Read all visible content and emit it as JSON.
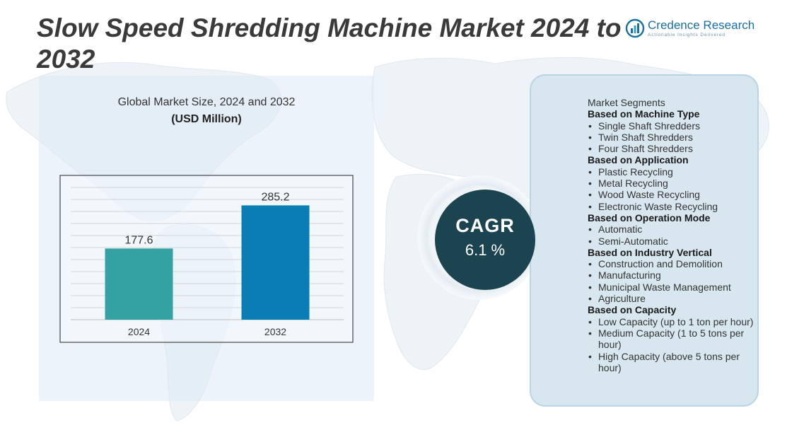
{
  "title": "Slow Speed Shredding Machine Market 2024 to 2032",
  "brand": {
    "name": "Credence Research",
    "tagline": "Actionable Insights Delivered"
  },
  "chart_data": {
    "type": "bar",
    "title": "Global Market Size, 2024 and 2032",
    "ylabel": "(USD Million)",
    "categories": [
      "2024",
      "2032"
    ],
    "values": [
      177.6,
      285.2
    ],
    "data_labels": [
      "177.6",
      "285.2"
    ],
    "bar_colors": [
      "#34a1a3",
      "#0a7db5"
    ],
    "ylim": [
      0,
      360
    ],
    "grid": true
  },
  "cagr": {
    "label": "CAGR",
    "value": "6.1 %"
  },
  "segments": {
    "heading": "Market Segments",
    "groups": [
      {
        "title": "Based on Machine Type",
        "items": [
          "Single Shaft Shredders",
          "Twin Shaft Shredders",
          "Four Shaft Shredders"
        ]
      },
      {
        "title": "Based on Application",
        "items": [
          "Plastic Recycling",
          "Metal Recycling",
          "Wood Waste Recycling",
          "Electronic Waste Recycling"
        ]
      },
      {
        "title": "Based on Operation Mode",
        "items": [
          "Automatic",
          "Semi-Automatic"
        ]
      },
      {
        "title": "Based on Industry Vertical",
        "items": [
          "Construction and Demolition",
          "Manufacturing",
          "Municipal Waste Management",
          "Agriculture"
        ]
      },
      {
        "title": "Based on Capacity",
        "items": [
          "Low Capacity (up to 1 ton per hour)",
          "Medium Capacity (1 to 5 tons per hour)",
          "High Capacity (above 5 tons per hour)"
        ]
      }
    ]
  },
  "colors": {
    "title": "#3a3a3a",
    "cagr_circle": "#1c4450",
    "panel": "#d7e6ef",
    "brand": "#1a6fa0"
  }
}
